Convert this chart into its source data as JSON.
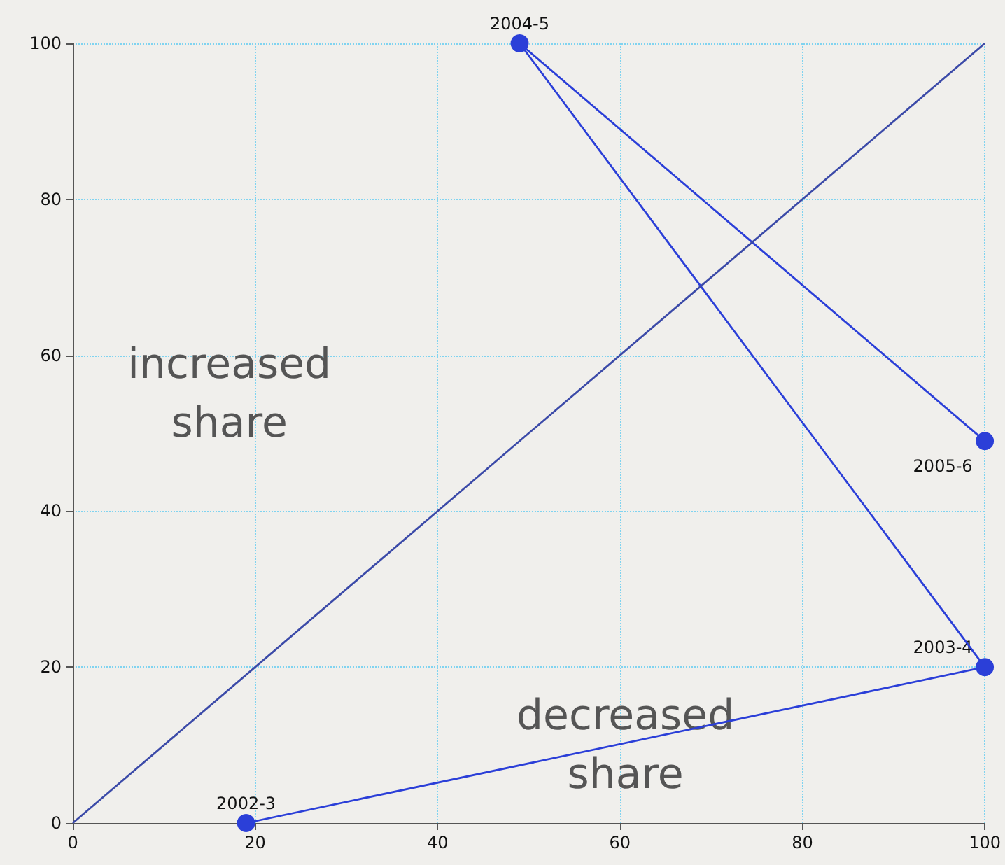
{
  "chart_data": {
    "type": "line",
    "xlim": [
      0,
      100
    ],
    "ylim": [
      0,
      100
    ],
    "xticks": [
      0,
      20,
      40,
      60,
      80,
      100
    ],
    "yticks": [
      0,
      20,
      40,
      60,
      80,
      100
    ],
    "grid": true,
    "marker": "circle",
    "line_style": "solid",
    "series": [
      {
        "color": "#2b3fd8",
        "x": [
          19,
          100,
          49,
          100
        ],
        "values": [
          0,
          20,
          100,
          49
        ]
      },
      {
        "color": "#3b4aa8",
        "marker": "none",
        "x": [
          0,
          100
        ],
        "values": [
          0,
          100
        ]
      }
    ],
    "annotations": [
      "increased share",
      "decreased share",
      {
        "text": "2002-3",
        "x": 19,
        "y": 0
      },
      {
        "text": "2003-4",
        "x": 100,
        "y": 20
      },
      {
        "text": "2004-5",
        "x": 49,
        "y": 100
      },
      {
        "text": "2005-6",
        "x": 100,
        "y": 49
      }
    ]
  }
}
